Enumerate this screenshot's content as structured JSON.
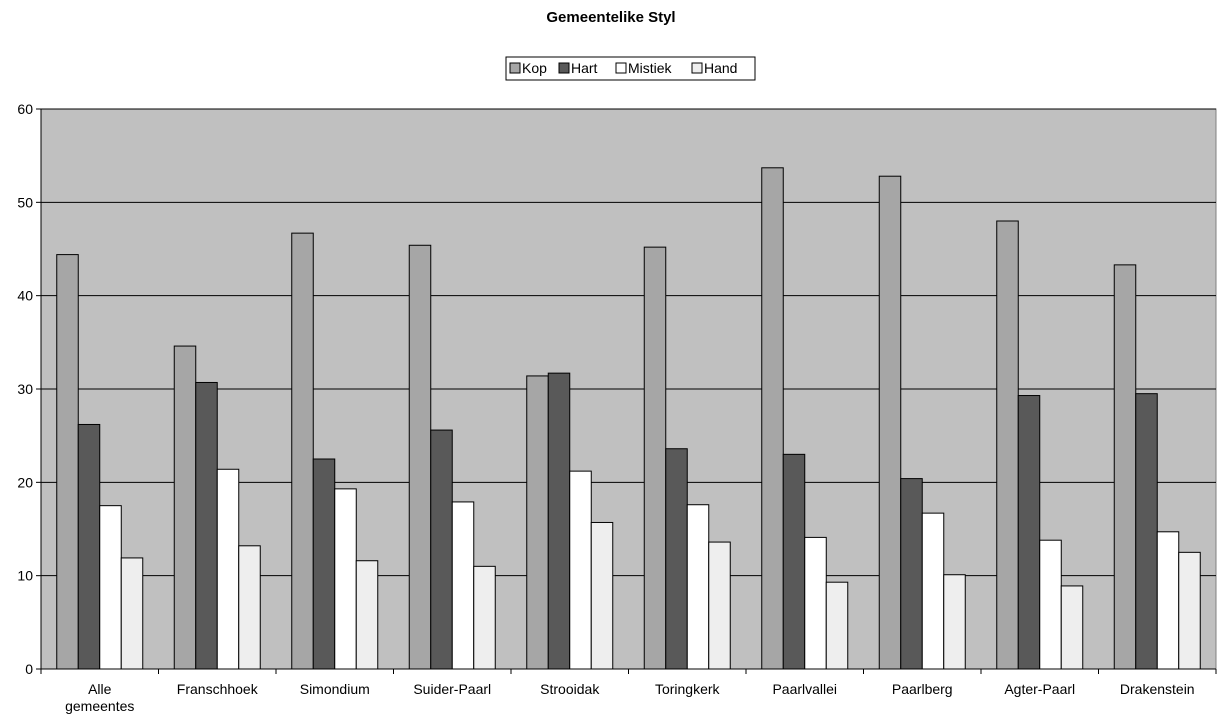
{
  "chart_data": {
    "type": "bar",
    "title": "Gemeentelike Styl",
    "xlabel": "",
    "ylabel": "",
    "ylim": [
      0,
      60
    ],
    "yticks": [
      0,
      10,
      20,
      30,
      40,
      50,
      60
    ],
    "grid": true,
    "legend_position": "top-center",
    "categories": [
      [
        "Alle",
        "gemeentes"
      ],
      [
        "Franschhoek"
      ],
      [
        "Simondium"
      ],
      [
        "Suider-Paarl"
      ],
      [
        "Strooidak"
      ],
      [
        "Toringkerk"
      ],
      [
        "Paarlvallei"
      ],
      [
        "Paarlberg"
      ],
      [
        "Agter-Paarl"
      ],
      [
        "Drakenstein"
      ]
    ],
    "series": [
      {
        "name": "Kop",
        "color": "#a6a6a6",
        "values": [
          44.4,
          34.6,
          46.7,
          45.4,
          31.4,
          45.2,
          53.7,
          52.8,
          48.0,
          43.3
        ]
      },
      {
        "name": "Hart",
        "color": "#595959",
        "values": [
          26.2,
          30.7,
          22.5,
          25.6,
          31.7,
          23.6,
          23.0,
          20.4,
          29.3,
          29.5
        ]
      },
      {
        "name": "Mistiek",
        "color": "#ffffff",
        "values": [
          17.5,
          21.4,
          19.3,
          17.9,
          21.2,
          17.6,
          14.1,
          16.7,
          13.8,
          14.7
        ]
      },
      {
        "name": "Hand",
        "color": "#eeeeee",
        "values": [
          11.9,
          13.2,
          11.6,
          11.0,
          15.7,
          13.6,
          9.3,
          10.1,
          8.9,
          12.5
        ]
      }
    ],
    "plot_background": "#c0c0c0"
  }
}
